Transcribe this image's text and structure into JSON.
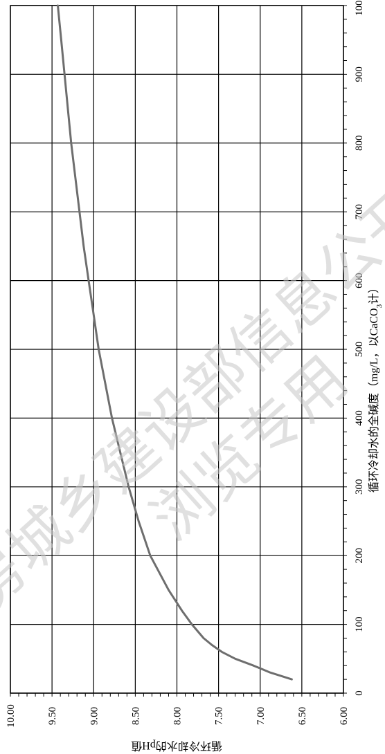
{
  "chart_data": {
    "type": "line",
    "title": "",
    "xlabel": "循环冷却水的全碱度（mg/L，以CaCO₃计）",
    "xlabel_parts": [
      "循环冷却水的全碱度（mg/L，以CaCO",
      "3",
      "计）"
    ],
    "ylabel": "循环冷却水的pH值",
    "xlim": [
      0,
      1000
    ],
    "ylim": [
      6.0,
      10.0
    ],
    "x_ticks": [
      0,
      100,
      200,
      300,
      400,
      500,
      600,
      700,
      800,
      900,
      1000
    ],
    "x_tick_labels": [
      "0",
      "100",
      "200",
      "300",
      "400",
      "500",
      "600",
      "700",
      "800",
      "900",
      "1000"
    ],
    "y_ticks": [
      6.0,
      6.5,
      7.0,
      7.5,
      8.0,
      8.5,
      9.0,
      9.5,
      10.0
    ],
    "y_tick_labels": [
      "6.00",
      "6.50",
      "7.00",
      "7.50",
      "8.00",
      "8.50",
      "9.00",
      "9.50",
      "10.00"
    ],
    "grid": true,
    "rotation": "rotated 90° clockwise (x axis runs along the right edge, bottom to top)",
    "series": [
      {
        "color": "#6e6e6e",
        "x": [
          20,
          30,
          40,
          50,
          60,
          70,
          80,
          100,
          120,
          150,
          200,
          250,
          300,
          350,
          400,
          450,
          500,
          550,
          600,
          650,
          700,
          750,
          800,
          850,
          900,
          950,
          1000
        ],
        "y": [
          6.62,
          6.88,
          7.08,
          7.3,
          7.46,
          7.58,
          7.68,
          7.82,
          7.94,
          8.1,
          8.32,
          8.46,
          8.58,
          8.68,
          8.78,
          8.86,
          8.94,
          9.0,
          9.06,
          9.12,
          9.17,
          9.22,
          9.27,
          9.31,
          9.35,
          9.39,
          9.43
        ]
      }
    ]
  },
  "watermark": {
    "line1": "房城乡建设部信息公开",
    "line2": "浏览专用"
  }
}
